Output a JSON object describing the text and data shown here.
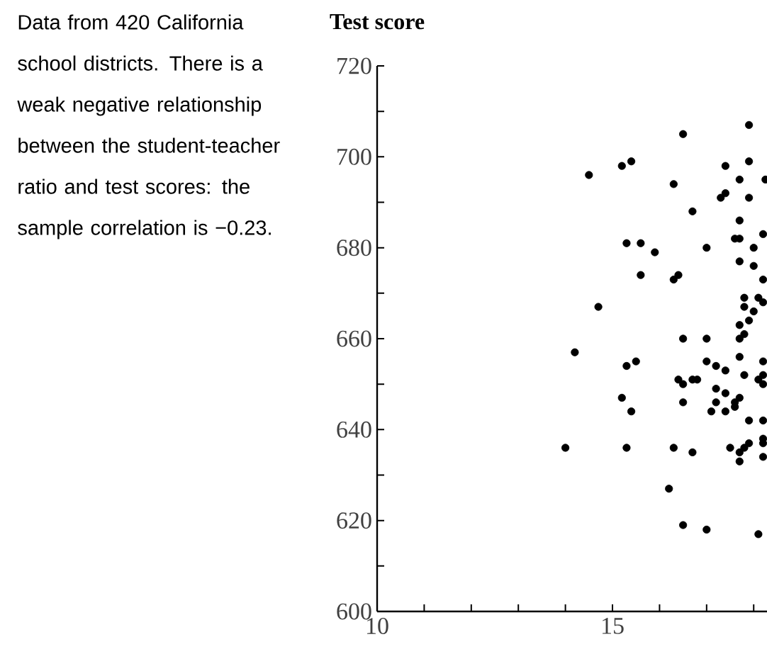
{
  "chart_data": {
    "type": "scatter",
    "title": "Test score",
    "annotations": [
      "Data from 420 California school districts. There is a weak negative relationship between the student-teacher ratio and test scores: the sample correlation is −0.23."
    ],
    "xlim": [
      10,
      18.3
    ],
    "ylim": [
      600,
      720
    ],
    "xticks": [
      10,
      {
        "value": 11,
        "label": null
      },
      {
        "value": 12,
        "label": null
      },
      {
        "value": 13,
        "label": null
      },
      {
        "value": 14,
        "label": null
      },
      15,
      {
        "value": 16,
        "label": null
      },
      {
        "value": 17,
        "label": null
      },
      {
        "value": 18,
        "label": null
      }
    ],
    "yticks": [
      600,
      {
        "value": 610,
        "label": null
      },
      620,
      {
        "value": 630,
        "label": null
      },
      640,
      {
        "value": 650,
        "label": null
      },
      660,
      {
        "value": 670,
        "label": null
      },
      680,
      {
        "value": 690,
        "label": null
      },
      700,
      {
        "value": 710,
        "label": null
      },
      720
    ],
    "grid": false,
    "series": [
      {
        "color": "#000000",
        "x": [
          14.5,
          15.2,
          15.4,
          16.5,
          16.3,
          16.7,
          17.3,
          17.4,
          17.4,
          17.9,
          17.9,
          17.7,
          17.9,
          18.25,
          17.7,
          15.3,
          15.6,
          15.9,
          17.0,
          17.6,
          17.7,
          18.2,
          18.0,
          17.7,
          18.0,
          15.6,
          16.3,
          16.4,
          18.2,
          14.7,
          17.8,
          17.8,
          18.0,
          18.1,
          18.2,
          17.9,
          17.7,
          17.7,
          17.8,
          16.5,
          17.0,
          14.2,
          15.3,
          15.5,
          17.0,
          17.2,
          17.4,
          17.7,
          17.8,
          18.2,
          18.1,
          18.2,
          18.2,
          16.4,
          16.5,
          16.7,
          16.8,
          17.2,
          17.4,
          17.7,
          17.6,
          17.6,
          17.2,
          17.4,
          17.1,
          16.5,
          15.2,
          15.4,
          17.9,
          18.2,
          14.0,
          15.3,
          16.3,
          16.7,
          17.5,
          17.7,
          17.7,
          17.8,
          17.9,
          18.2,
          18.2,
          18.2,
          16.2,
          16.5,
          17.0,
          18.1
        ],
        "values": [
          696,
          698,
          699,
          705,
          694,
          688,
          691,
          692,
          698,
          707,
          699,
          695,
          691,
          695,
          686,
          681,
          681,
          679,
          680,
          682,
          682,
          683,
          680,
          677,
          676,
          674,
          673,
          674,
          673,
          667,
          669,
          667,
          666,
          669,
          668,
          664,
          663,
          660,
          661,
          660,
          660,
          657,
          654,
          655,
          655,
          654,
          653,
          656,
          652,
          655,
          651,
          652,
          650,
          651,
          650,
          651,
          651,
          649,
          648,
          647,
          646,
          645,
          646,
          644,
          644,
          646,
          647,
          644,
          642,
          642,
          636,
          636,
          636,
          635,
          636,
          635,
          633,
          636,
          637,
          637,
          634,
          638,
          627,
          619,
          618,
          617
        ]
      }
    ]
  }
}
